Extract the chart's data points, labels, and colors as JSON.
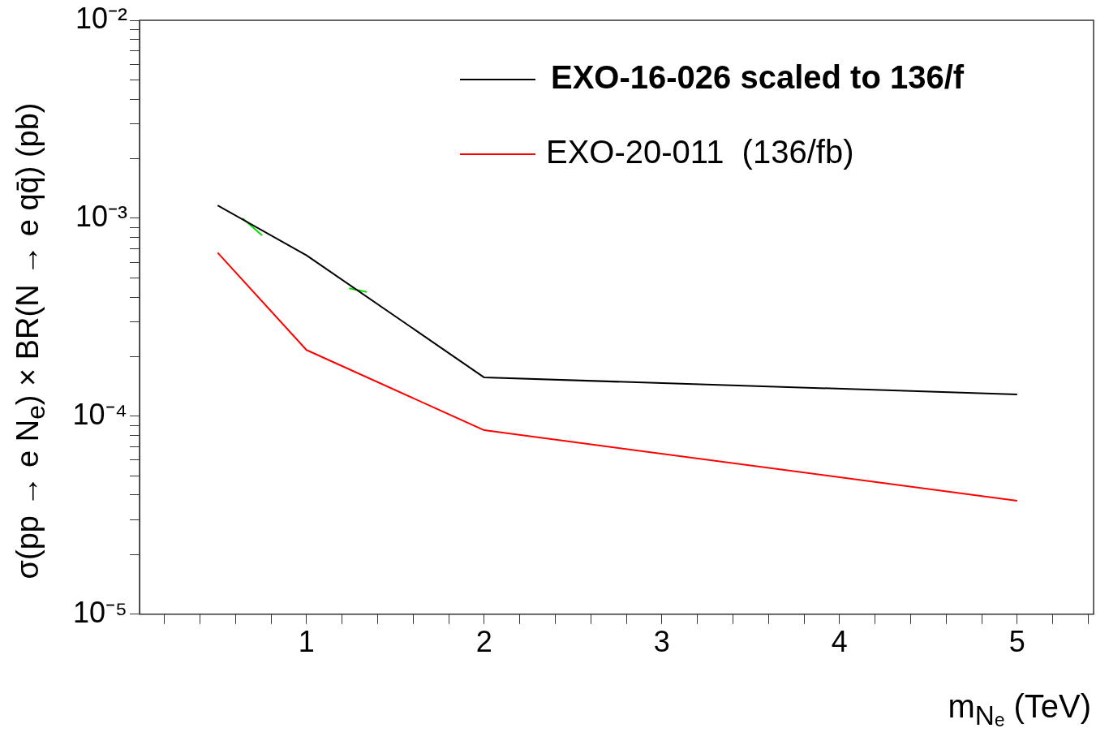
{
  "chart_data": {
    "type": "line",
    "xlabel": "m$_{Nₑ}$ (TeV)",
    "ylabel": "σ(pp → e N$_{e}$) × BR(N → e qq̄) (pb)",
    "log": "y",
    "grid": false,
    "legend": "top right",
    "marker": "none",
    "line_style": "solid",
    "xlim": [
      0.06,
      5.43
    ],
    "xticks": [
      {
        "value": 0.2,
        "label": null
      },
      {
        "value": 0.4,
        "label": null
      },
      {
        "value": 0.6,
        "label": null
      },
      {
        "value": 0.8,
        "label": null
      },
      1,
      {
        "value": 1.2,
        "label": null
      },
      {
        "value": 1.4,
        "label": null
      },
      {
        "value": 1.6,
        "label": null
      },
      {
        "value": 1.8,
        "label": null
      },
      2,
      {
        "value": 2.2,
        "label": null
      },
      {
        "value": 2.4,
        "label": null
      },
      {
        "value": 2.6,
        "label": null
      },
      {
        "value": 2.8,
        "label": null
      },
      3,
      {
        "value": 3.2,
        "label": null
      },
      {
        "value": 3.4,
        "label": null
      },
      {
        "value": 3.6,
        "label": null
      },
      {
        "value": 3.8,
        "label": null
      },
      4,
      {
        "value": 4.2,
        "label": null
      },
      {
        "value": 4.4,
        "label": null
      },
      {
        "value": 4.6,
        "label": null
      },
      {
        "value": 4.8,
        "label": null
      },
      5,
      {
        "value": 5.2,
        "label": null
      },
      {
        "value": 5.4,
        "label": null
      }
    ],
    "ylim": [
      1e-05,
      0.01
    ],
    "yticks": [
      {
        "value": 1e-05,
        "label": "10⁻⁵"
      },
      {
        "value": 2e-05,
        "label": null
      },
      {
        "value": 3e-05,
        "label": null
      },
      {
        "value": 4e-05,
        "label": null
      },
      {
        "value": 5e-05,
        "label": null
      },
      {
        "value": 6e-05,
        "label": null
      },
      {
        "value": 7e-05,
        "label": null
      },
      {
        "value": 8e-05,
        "label": null
      },
      {
        "value": 9e-05,
        "label": null
      },
      {
        "value": 0.0001,
        "label": "10⁻⁴"
      },
      {
        "value": 0.0002,
        "label": null
      },
      {
        "value": 0.0003,
        "label": null
      },
      {
        "value": 0.0004,
        "label": null
      },
      {
        "value": 0.0005,
        "label": null
      },
      {
        "value": 0.0006,
        "label": null
      },
      {
        "value": 0.0007,
        "label": null
      },
      {
        "value": 0.0008,
        "label": null
      },
      {
        "value": 0.0009,
        "label": null
      },
      {
        "value": 0.001,
        "label": "10⁻³"
      },
      {
        "value": 0.002,
        "label": null
      },
      {
        "value": 0.003,
        "label": null
      },
      {
        "value": 0.004,
        "label": null
      },
      {
        "value": 0.005,
        "label": null
      },
      {
        "value": 0.006,
        "label": null
      },
      {
        "value": 0.007,
        "label": null
      },
      {
        "value": 0.008,
        "label": null
      },
      {
        "value": 0.009,
        "label": null
      },
      {
        "value": 0.01,
        "label": "10⁻²"
      }
    ],
    "series": [
      {
        "name": "EXO-16-026 scaled to 136/f",
        "color": "#000000",
        "x": [
          0.5,
          1,
          2,
          5
        ],
        "values": [
          0.00116,
          0.00065,
          0.000157,
          0.000129
        ]
      },
      {
        "name": "EXO-20-011  (136/fb)",
        "color": "#ff0000",
        "x": [
          0.5,
          1,
          2,
          5
        ],
        "values": [
          0.00067,
          0.000216,
          8.5e-05,
          3.74e-05
        ]
      },
      {
        "color": "#00dd00",
        "x": [
          0.64,
          0.75
        ],
        "values": [
          0.001,
          0.00082
        ]
      },
      {
        "color": "#00dd00",
        "x": [
          1.24,
          1.34
        ],
        "values": [
          0.000443,
          0.000424
        ]
      }
    ]
  }
}
